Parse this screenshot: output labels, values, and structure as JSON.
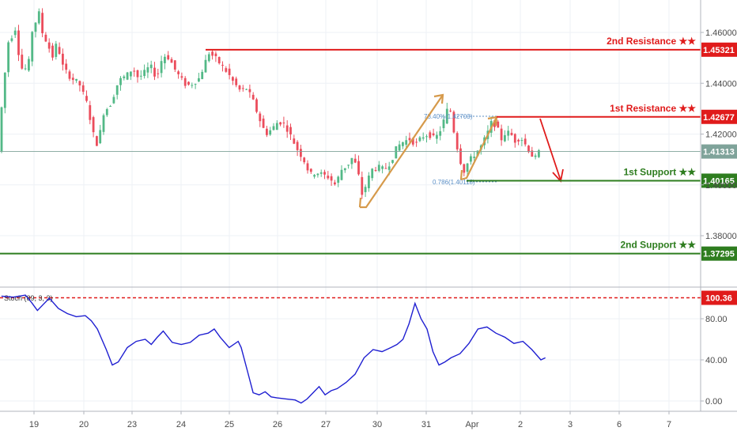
{
  "chart_data": {
    "type": "candlestick",
    "main": {
      "price_range": [
        1.36,
        1.47
      ],
      "y_ticks": [
        "1.46000",
        "1.44000",
        "1.42000",
        "1.40000",
        "1.38000"
      ],
      "y_tick_values": [
        1.46,
        1.44,
        1.42,
        1.4,
        1.38
      ],
      "levels": [
        {
          "label": "2nd Resistance ★★",
          "value": 1.45321,
          "badge": "1.45321",
          "color": "#e01b1b",
          "start_x": 24.5
        },
        {
          "label": "1st Resistance ★★",
          "value": 1.42677,
          "badge": "1.42677",
          "color": "#e01b1b",
          "start_x": 35.5
        },
        {
          "label": "1st Support ★★",
          "value": 1.40165,
          "badge": "1.40165",
          "color": "#2e7d1f",
          "start_x": 34.6
        },
        {
          "label": "2nd Support ★★",
          "value": 1.37295,
          "badge": "1.37295",
          "color": "#2e7d1f",
          "start_x": 18.0
        }
      ],
      "current": {
        "value": 1.41313,
        "badge": "1.41313",
        "color": "#7fa39a"
      },
      "fib_labels": [
        {
          "text": "78.40%(1.42703)",
          "x": 34.15,
          "value": 1.427
        },
        {
          "text": "0.786(1.40118)",
          "x": 33.95,
          "value": 1.4012
        }
      ],
      "projection": [
        [
          36.05,
          1.4265
        ],
        [
          36.7,
          1.4016
        ]
      ],
      "patterns": [
        [
          [
            27.85,
            1.3935
          ],
          [
            29.1,
            1.399
          ],
          [
            31.3,
            1.4348
          ]
        ],
        [
          [
            33.65,
            1.4025
          ],
          [
            34.15,
            1.4045
          ],
          [
            35.1,
            1.427
          ]
        ]
      ],
      "ohlc": []
    },
    "indicator": {
      "label": "Stoch (89, 3, 3)",
      "range": [
        -10,
        115
      ],
      "y_ticks": [
        "80.00",
        "40.00",
        "0.00"
      ],
      "y_tick_values": [
        80,
        40,
        0
      ],
      "overbought": {
        "value": 100.36,
        "badge": "100.36",
        "color": "#e01b1b"
      },
      "points": [
        [
          18.0,
          102
        ],
        [
          18.4,
          101
        ],
        [
          18.8,
          103
        ],
        [
          19.0,
          96
        ],
        [
          19.2,
          88
        ],
        [
          19.4,
          94
        ],
        [
          19.6,
          100
        ],
        [
          19.9,
          90
        ],
        [
          20.2,
          85
        ],
        [
          20.5,
          82
        ],
        [
          20.8,
          83
        ],
        [
          21.0,
          78
        ],
        [
          21.2,
          70
        ],
        [
          21.5,
          50
        ],
        [
          21.7,
          35
        ],
        [
          21.9,
          38
        ],
        [
          22.2,
          52
        ],
        [
          22.5,
          58
        ],
        [
          22.8,
          60
        ],
        [
          23.0,
          55
        ],
        [
          23.2,
          62
        ],
        [
          23.4,
          68
        ],
        [
          23.7,
          57
        ],
        [
          24.0,
          55
        ],
        [
          24.3,
          57
        ],
        [
          24.6,
          64
        ],
        [
          24.9,
          66
        ],
        [
          25.1,
          70
        ],
        [
          25.3,
          62
        ],
        [
          25.6,
          52
        ],
        [
          25.9,
          58
        ],
        [
          26.0,
          52
        ],
        [
          26.2,
          30
        ],
        [
          26.4,
          8
        ],
        [
          26.6,
          6
        ],
        [
          26.8,
          9
        ],
        [
          27.0,
          4
        ],
        [
          27.2,
          3
        ],
        [
          27.5,
          2
        ],
        [
          27.8,
          1
        ],
        [
          28.0,
          -2
        ],
        [
          28.2,
          2
        ],
        [
          28.4,
          8
        ],
        [
          28.6,
          14
        ],
        [
          28.8,
          6
        ],
        [
          29.0,
          10
        ],
        [
          29.2,
          12
        ],
        [
          29.5,
          18
        ],
        [
          29.8,
          26
        ],
        [
          30.1,
          42
        ],
        [
          30.4,
          50
        ],
        [
          30.7,
          48
        ],
        [
          31.0,
          52
        ],
        [
          31.2,
          55
        ],
        [
          31.4,
          60
        ],
        [
          31.6,
          75
        ],
        [
          31.8,
          95
        ],
        [
          32.0,
          80
        ],
        [
          32.2,
          70
        ],
        [
          32.4,
          48
        ],
        [
          32.6,
          35
        ],
        [
          32.8,
          38
        ],
        [
          33.0,
          42
        ],
        [
          33.3,
          46
        ],
        [
          33.6,
          56
        ],
        [
          33.9,
          70
        ],
        [
          34.2,
          72
        ],
        [
          34.5,
          66
        ],
        [
          34.8,
          62
        ],
        [
          35.1,
          56
        ],
        [
          35.4,
          58
        ],
        [
          35.7,
          50
        ],
        [
          36.0,
          40
        ],
        [
          36.15,
          42
        ]
      ]
    },
    "x_axis": {
      "labels": [
        "19",
        "20",
        "23",
        "24",
        "25",
        "26",
        "27",
        "30",
        "31",
        "Apr",
        "2",
        "3",
        "6",
        "7"
      ],
      "positions": [
        19,
        20,
        21,
        22,
        23,
        24,
        25,
        26,
        27,
        28,
        29,
        30,
        31,
        32
      ]
    }
  }
}
